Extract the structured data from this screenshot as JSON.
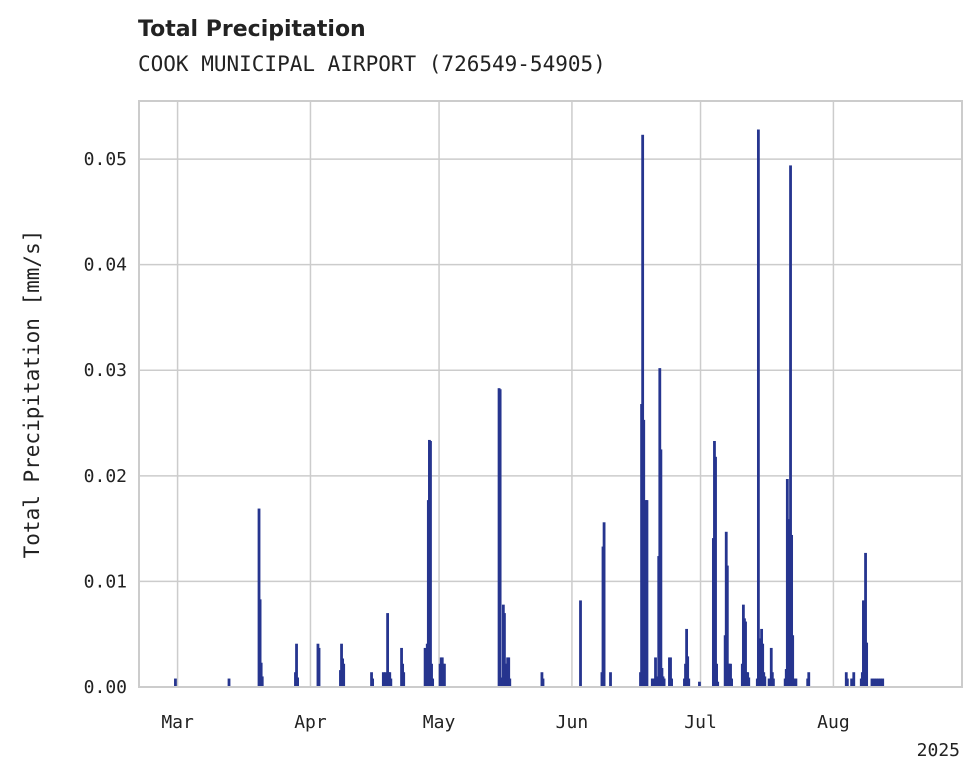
{
  "chart_data": {
    "type": "bar",
    "title": "Total Precipitation",
    "subtitle": "COOK MUNICIPAL AIRPORT (726549-54905)",
    "xlabel": "",
    "ylabel": "Total Precipitation [mm/s]",
    "xlim": [
      "2025-02-20",
      "2025-08-31"
    ],
    "ylim": [
      0,
      0.0555
    ],
    "y_ticks": [
      {
        "value": 0.0,
        "label": "0.00"
      },
      {
        "value": 0.01,
        "label": "0.01"
      },
      {
        "value": 0.02,
        "label": "0.02"
      },
      {
        "value": 0.03,
        "label": "0.03"
      },
      {
        "value": 0.04,
        "label": "0.04"
      },
      {
        "value": 0.05,
        "label": "0.05"
      }
    ],
    "x_ticks": [
      {
        "date": "2025-03-01",
        "label": "Mar"
      },
      {
        "date": "2025-04-01",
        "label": "Apr"
      },
      {
        "date": "2025-05-01",
        "label": "May"
      },
      {
        "date": "2025-06-01",
        "label": "Jun"
      },
      {
        "date": "2025-07-01",
        "label": "Jul"
      },
      {
        "date": "2025-08-01",
        "label": "Aug"
      }
    ],
    "x_offset_label": "2025",
    "grid": true,
    "bar_color": "#26358f",
    "series": [
      {
        "x": [
          "2025-02-28T12:00",
          "2025-03-13T00:00",
          "2025-03-20T00:00",
          "2025-03-20T06:00",
          "2025-03-20T12:00",
          "2025-03-20T18:00",
          "2025-03-28T12:00",
          "2025-03-28T18:00",
          "2025-03-29T00:00",
          "2025-04-02T18:00",
          "2025-04-03T00:00",
          "2025-04-08T00:00",
          "2025-04-08T06:00",
          "2025-04-08T12:00",
          "2025-04-08T18:00",
          "2025-04-15T06:00",
          "2025-04-15T12:00",
          "2025-04-18T00:00",
          "2025-04-18T12:00",
          "2025-04-19T00:00",
          "2025-04-19T06:00",
          "2025-04-19T12:00",
          "2025-04-19T18:00",
          "2025-04-22T06:00",
          "2025-04-22T12:00",
          "2025-04-22T18:00",
          "2025-04-27T18:00",
          "2025-04-28T00:00",
          "2025-04-28T06:00",
          "2025-04-28T12:00",
          "2025-04-28T18:00",
          "2025-04-29T00:00",
          "2025-04-29T06:00",
          "2025-04-29T12:00",
          "2025-05-01T06:00",
          "2025-05-01T12:00",
          "2025-05-01T18:00",
          "2025-05-02T00:00",
          "2025-05-02T06:00",
          "2025-05-15T00:00",
          "2025-05-15T06:00",
          "2025-05-15T12:00",
          "2025-05-16T00:00",
          "2025-05-16T06:00",
          "2025-05-16T12:00",
          "2025-05-16T18:00",
          "2025-05-17T00:00",
          "2025-05-17T06:00",
          "2025-05-17T12:00",
          "2025-05-25T00:00",
          "2025-05-25T06:00",
          "2025-06-03T00:00",
          "2025-06-08T00:00",
          "2025-06-08T06:00",
          "2025-06-08T12:00",
          "2025-06-10T00:00",
          "2025-06-17T00:00",
          "2025-06-17T06:00",
          "2025-06-17T12:00",
          "2025-06-17T18:00",
          "2025-06-18T00:00",
          "2025-06-18T06:00",
          "2025-06-18T12:00",
          "2025-06-19T18:00",
          "2025-06-20T00:00",
          "2025-06-20T06:00",
          "2025-06-20T12:00",
          "2025-06-20T18:00",
          "2025-06-21T00:00",
          "2025-06-21T06:00",
          "2025-06-21T12:00",
          "2025-06-21T18:00",
          "2025-06-22T00:00",
          "2025-06-22T06:00",
          "2025-06-22T12:00",
          "2025-06-23T18:00",
          "2025-06-24T00:00",
          "2025-06-24T06:00",
          "2025-06-27T06:00",
          "2025-06-27T12:00",
          "2025-06-27T18:00",
          "2025-06-28T00:00",
          "2025-06-28T06:00",
          "2025-06-30T18:00",
          "2025-07-04T00:00",
          "2025-07-04T06:00",
          "2025-07-04T12:00",
          "2025-07-04T18:00",
          "2025-07-05T00:00",
          "2025-07-06T18:00",
          "2025-07-07T00:00",
          "2025-07-07T06:00",
          "2025-07-07T12:00",
          "2025-07-07T18:00",
          "2025-07-08T00:00",
          "2025-07-08T06:00",
          "2025-07-10T18:00",
          "2025-07-11T00:00",
          "2025-07-11T06:00",
          "2025-07-11T12:00",
          "2025-07-11T18:00",
          "2025-07-12T00:00",
          "2025-07-12T06:00",
          "2025-07-14T06:00",
          "2025-07-14T12:00",
          "2025-07-14T18:00",
          "2025-07-15T00:00",
          "2025-07-15T06:00",
          "2025-07-15T12:00",
          "2025-07-15T18:00",
          "2025-07-16T00:00",
          "2025-07-17T00:00",
          "2025-07-17T06:00",
          "2025-07-17T12:00",
          "2025-07-17T18:00",
          "2025-07-18T00:00",
          "2025-07-20T18:00",
          "2025-07-21T00:00",
          "2025-07-21T06:00",
          "2025-07-21T12:00",
          "2025-07-21T18:00",
          "2025-07-22T00:00",
          "2025-07-22T06:00",
          "2025-07-22T12:00",
          "2025-07-22T18:00",
          "2025-07-23T00:00",
          "2025-07-23T06:00",
          "2025-07-26T00:00",
          "2025-07-26T06:00",
          "2025-08-04T00:00",
          "2025-08-04T06:00",
          "2025-08-05T06:00",
          "2025-08-05T12:00",
          "2025-08-05T18:00",
          "2025-08-07T12:00",
          "2025-08-07T18:00",
          "2025-08-08T00:00",
          "2025-08-08T06:00",
          "2025-08-08T12:00",
          "2025-08-08T18:00",
          "2025-08-10T00:00",
          "2025-08-10T12:00",
          "2025-08-11T00:00",
          "2025-08-11T12:00",
          "2025-08-12T00:00",
          "2025-08-12T12:00"
        ],
        "y": [
          0.0008,
          0.0008,
          0.0169,
          0.0083,
          0.0023,
          0.001,
          0.0014,
          0.0041,
          0.0009,
          0.0041,
          0.0037,
          0.0016,
          0.0041,
          0.0027,
          0.0022,
          0.0014,
          0.0008,
          0.0014,
          0.0014,
          0.007,
          0.0014,
          0.0014,
          0.0008,
          0.0037,
          0.0022,
          0.0014,
          0.0037,
          0.0035,
          0.0041,
          0.0177,
          0.0234,
          0.0233,
          0.0022,
          0.0008,
          0.0022,
          0.0028,
          0.0028,
          0.0022,
          0.0022,
          0.0283,
          0.0282,
          0.0009,
          0.0078,
          0.007,
          0.0022,
          0.0022,
          0.0028,
          0.0028,
          0.0008,
          0.0014,
          0.0008,
          0.0082,
          0.0014,
          0.0133,
          0.0156,
          0.0014,
          0.0014,
          0.0268,
          0.0523,
          0.0253,
          0.0014,
          0.0177,
          0.0177,
          0.0008,
          0.0008,
          0.0008,
          0.0028,
          0.0008,
          0.001,
          0.0124,
          0.0302,
          0.0225,
          0.0018,
          0.001,
          0.0008,
          0.0028,
          0.0028,
          0.0008,
          0.0008,
          0.0022,
          0.0055,
          0.0029,
          0.0008,
          0.0005,
          0.0141,
          0.0233,
          0.0218,
          0.0022,
          0.0005,
          0.0049,
          0.0147,
          0.0115,
          0.0022,
          0.0022,
          0.0022,
          0.0008,
          0.0022,
          0.0078,
          0.0065,
          0.0062,
          0.0014,
          0.0014,
          0.0009,
          0.0008,
          0.0528,
          0.0046,
          0.0008,
          0.0055,
          0.0041,
          0.0014,
          0.001,
          0.0008,
          0.0008,
          0.0037,
          0.0014,
          0.0008,
          0.0008,
          0.0017,
          0.0197,
          0.0159,
          0.0008,
          0.0494,
          0.0144,
          0.0049,
          0.0008,
          0.0008,
          0.0008,
          0.0008,
          0.0014,
          0.0014,
          0.0008,
          0.0008,
          0.0008,
          0.0014,
          0.0008,
          0.0014,
          0.0082,
          0.0082,
          0.0127,
          0.0042,
          0.0008,
          0.0008,
          0.0008,
          0.0008,
          0.0008,
          0.0008
        ]
      }
    ]
  }
}
